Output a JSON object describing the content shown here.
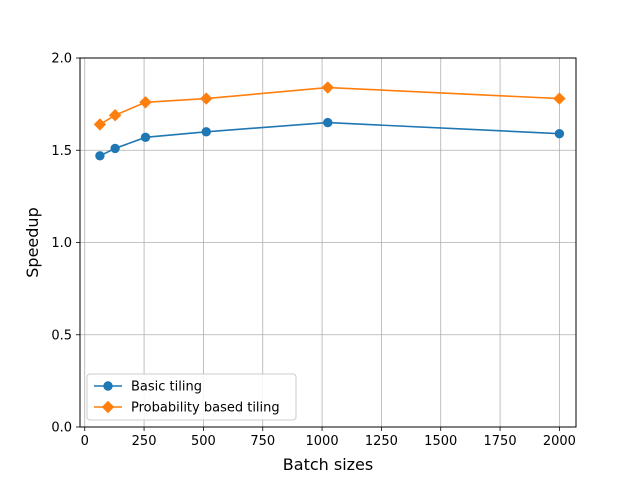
{
  "chart_data": {
    "type": "line",
    "xlabel": "Batch sizes",
    "ylabel": "Speedup",
    "xlim": [
      -20,
      2070
    ],
    "ylim": [
      0.0,
      2.0
    ],
    "xticks": [
      0,
      250,
      500,
      750,
      1000,
      1250,
      1500,
      1750,
      2000
    ],
    "xtick_labels": [
      "0",
      "250",
      "500",
      "750",
      "1000",
      "1250",
      "1500",
      "1750",
      "2000"
    ],
    "yticks": [
      0.0,
      0.5,
      1.0,
      1.5,
      2.0
    ],
    "ytick_labels": [
      "0.0",
      "0.5",
      "1.0",
      "1.5",
      "2.0"
    ],
    "grid": true,
    "legend_position": "lower-left",
    "series": [
      {
        "name": "Basic tiling",
        "color": "#1f77b4",
        "marker": "circle",
        "x": [
          64,
          128,
          256,
          512,
          1024,
          2000
        ],
        "y": [
          1.47,
          1.51,
          1.57,
          1.6,
          1.65,
          1.59
        ]
      },
      {
        "name": "Probability based tiling",
        "color": "#ff7f0e",
        "marker": "diamond",
        "x": [
          64,
          128,
          256,
          512,
          1024,
          2000
        ],
        "y": [
          1.64,
          1.69,
          1.76,
          1.78,
          1.84,
          1.78
        ]
      }
    ]
  }
}
